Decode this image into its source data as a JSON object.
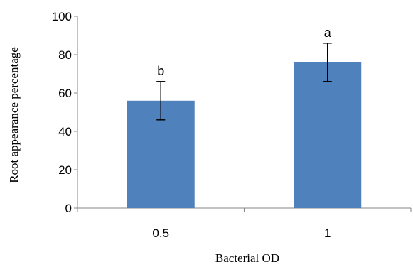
{
  "chart_data": {
    "type": "bar",
    "categories": [
      "0.5",
      "1"
    ],
    "values": [
      56,
      76
    ],
    "error": [
      10,
      10
    ],
    "significance_labels": [
      "b",
      "a"
    ],
    "xlabel": "Bacterial OD",
    "ylabel": "Root appearance percentage",
    "ylim": [
      0,
      100
    ],
    "yticks": [
      "0",
      "20",
      "40",
      "60",
      "80",
      "100"
    ],
    "grid": false,
    "legend": "none",
    "bar_color": "#4F81BD",
    "axis_color": "#868686",
    "error_color": "#000000"
  }
}
